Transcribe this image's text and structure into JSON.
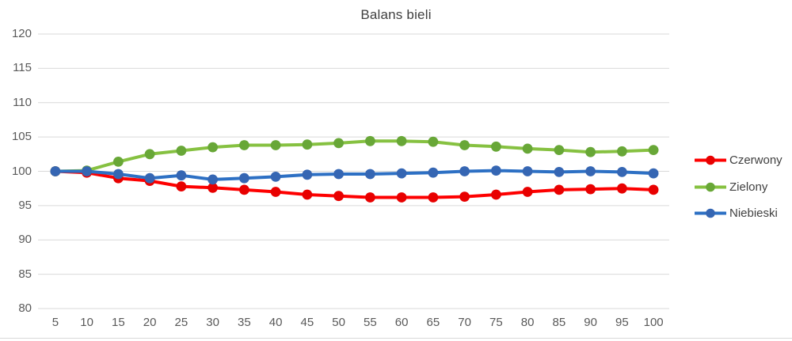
{
  "chart_data": {
    "type": "line",
    "title": "Balans bieli",
    "x": [
      5,
      10,
      15,
      20,
      25,
      30,
      35,
      40,
      45,
      50,
      55,
      60,
      65,
      70,
      75,
      80,
      85,
      90,
      95,
      100
    ],
    "xlabel": "",
    "ylabel": "",
    "ylim": [
      80,
      120
    ],
    "y_ticks": [
      80,
      85,
      90,
      95,
      100,
      105,
      110,
      115,
      120
    ],
    "grid": "horizontal-only",
    "legend_position": "right",
    "series": [
      {
        "name": "Czerwony",
        "line_color": "#FE0000",
        "marker_color": "#E80000",
        "values": [
          100,
          99.8,
          99,
          98.6,
          97.8,
          97.6,
          97.3,
          97,
          96.6,
          96.4,
          96.2,
          96.2,
          96.2,
          96.3,
          96.6,
          97,
          97.3,
          97.4,
          97.5,
          97.3
        ]
      },
      {
        "name": "Zielony",
        "line_color": "#86C141",
        "marker_color": "#68A737",
        "values": [
          100,
          100.1,
          101.4,
          102.5,
          103,
          103.5,
          103.8,
          103.8,
          103.9,
          104.1,
          104.4,
          104.4,
          104.3,
          103.8,
          103.6,
          103.3,
          103.1,
          102.8,
          102.9,
          103.1
        ]
      },
      {
        "name": "Niebieski",
        "line_color": "#2D70C4",
        "marker_color": "#3566B3",
        "values": [
          100,
          100,
          99.6,
          99,
          99.4,
          98.8,
          99,
          99.2,
          99.5,
          99.6,
          99.6,
          99.7,
          99.8,
          100,
          100.1,
          100,
          99.9,
          100,
          99.9,
          99.7
        ]
      }
    ],
    "styles": {
      "gridline_color": "#D9D9D9",
      "tick_label_color": "#595959",
      "title_color": "#3F3F3F",
      "legend_label_color": "#404040",
      "background": "#FFFFFF"
    }
  }
}
